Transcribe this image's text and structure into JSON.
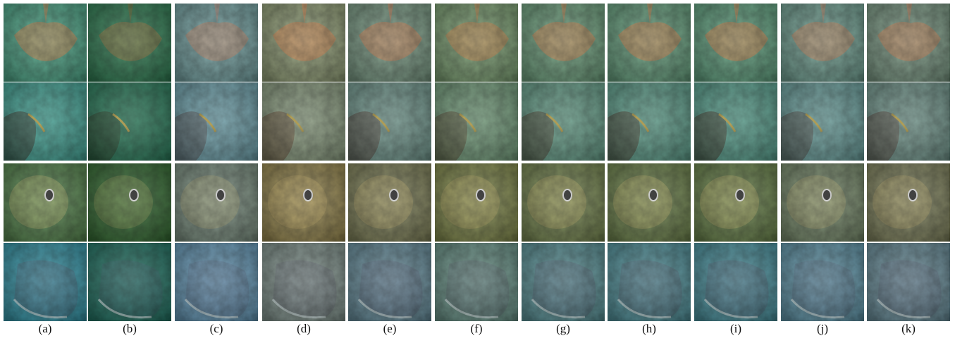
{
  "figure": {
    "labels": [
      "(a)",
      "(b)",
      "(c)",
      "(d)",
      "(e)",
      "(f)",
      "(g)",
      "(h)",
      "(i)",
      "(j)",
      "(k)"
    ]
  }
}
